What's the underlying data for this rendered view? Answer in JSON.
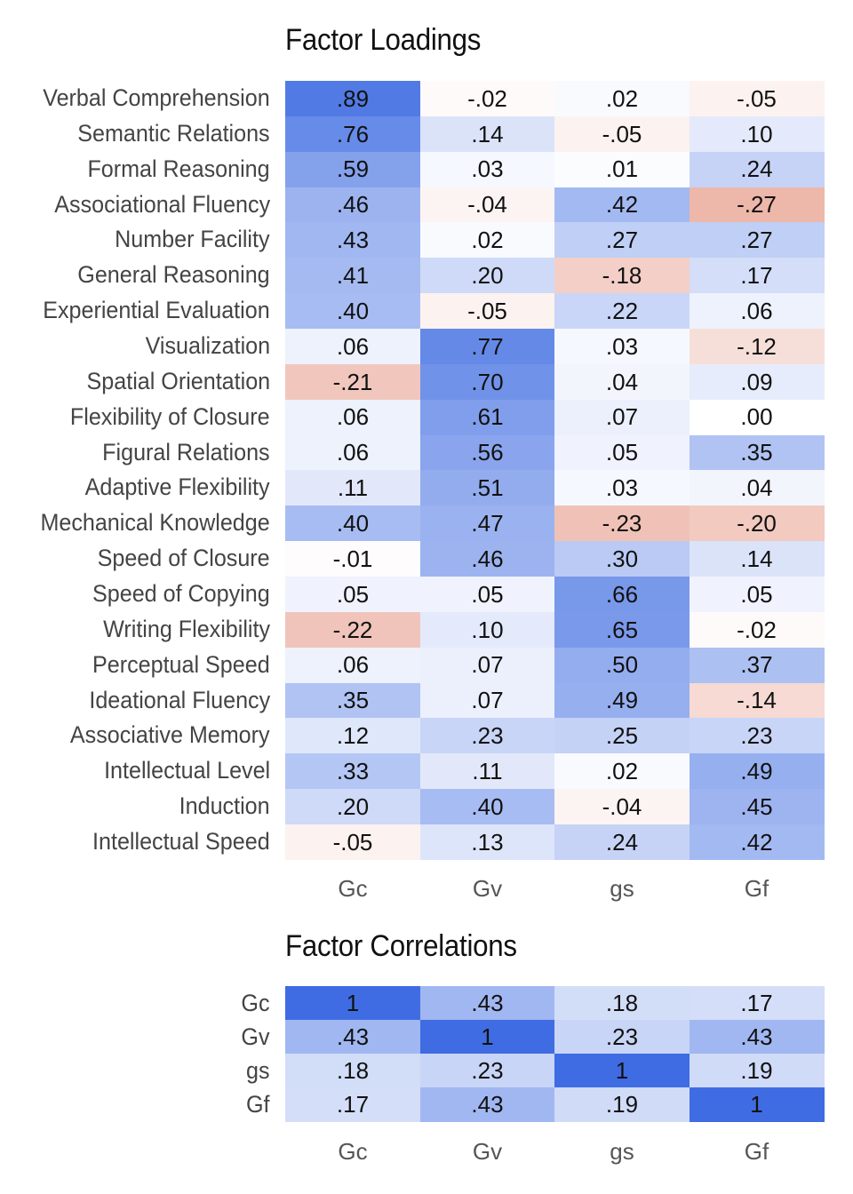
{
  "charts": [
    {
      "title": "Factor Loadings",
      "type": "heatmap",
      "rows": [
        "Verbal Comprehension",
        "Semantic Relations",
        "Formal Reasoning",
        "Associational Fluency",
        "Number Facility",
        "General Reasoning",
        "Experiential Evaluation",
        "Visualization",
        "Spatial Orientation",
        "Flexibility of Closure",
        "Figural Relations",
        "Adaptive Flexibility",
        "Mechanical Knowledge",
        "Speed of Closure",
        "Speed of Copying",
        "Writing Flexibility",
        "Perceptual Speed",
        "Ideational Fluency",
        "Associative Memory",
        "Intellectual Level",
        "Induction",
        "Intellectual Speed"
      ],
      "columns": [
        "Gc",
        "Gv",
        "gs",
        "Gf"
      ],
      "values": [
        [
          0.89,
          -0.02,
          0.02,
          -0.05
        ],
        [
          0.76,
          0.14,
          -0.05,
          0.1
        ],
        [
          0.59,
          0.03,
          0.01,
          0.24
        ],
        [
          0.46,
          -0.04,
          0.42,
          -0.27
        ],
        [
          0.43,
          0.02,
          0.27,
          0.27
        ],
        [
          0.41,
          0.2,
          -0.18,
          0.17
        ],
        [
          0.4,
          -0.05,
          0.22,
          0.06
        ],
        [
          0.06,
          0.77,
          0.03,
          -0.12
        ],
        [
          -0.21,
          0.7,
          0.04,
          0.09
        ],
        [
          0.06,
          0.61,
          0.07,
          0.0
        ],
        [
          0.06,
          0.56,
          0.05,
          0.35
        ],
        [
          0.11,
          0.51,
          0.03,
          0.04
        ],
        [
          0.4,
          0.47,
          -0.23,
          -0.2
        ],
        [
          -0.01,
          0.46,
          0.3,
          0.14
        ],
        [
          0.05,
          0.05,
          0.66,
          0.05
        ],
        [
          -0.22,
          0.1,
          0.65,
          -0.02
        ],
        [
          0.06,
          0.07,
          0.5,
          0.37
        ],
        [
          0.35,
          0.07,
          0.49,
          -0.14
        ],
        [
          0.12,
          0.23,
          0.25,
          0.23
        ],
        [
          0.33,
          0.11,
          0.02,
          0.49
        ],
        [
          0.2,
          0.4,
          -0.04,
          0.45
        ],
        [
          -0.05,
          0.13,
          0.24,
          0.42
        ]
      ],
      "labels": [
        [
          ".89",
          "-.02",
          ".02",
          "-.05"
        ],
        [
          ".76",
          ".14",
          "-.05",
          ".10"
        ],
        [
          ".59",
          ".03",
          ".01",
          ".24"
        ],
        [
          ".46",
          "-.04",
          ".42",
          "-.27"
        ],
        [
          ".43",
          ".02",
          ".27",
          ".27"
        ],
        [
          ".41",
          ".20",
          "-.18",
          ".17"
        ],
        [
          ".40",
          "-.05",
          ".22",
          ".06"
        ],
        [
          ".06",
          ".77",
          ".03",
          "-.12"
        ],
        [
          "-.21",
          ".70",
          ".04",
          ".09"
        ],
        [
          ".06",
          ".61",
          ".07",
          ".00"
        ],
        [
          ".06",
          ".56",
          ".05",
          ".35"
        ],
        [
          ".11",
          ".51",
          ".03",
          ".04"
        ],
        [
          ".40",
          ".47",
          "-.23",
          "-.20"
        ],
        [
          "-.01",
          ".46",
          ".30",
          ".14"
        ],
        [
          ".05",
          ".05",
          ".66",
          ".05"
        ],
        [
          "-.22",
          ".10",
          ".65",
          "-.02"
        ],
        [
          ".06",
          ".07",
          ".50",
          ".37"
        ],
        [
          ".35",
          ".07",
          ".49",
          "-.14"
        ],
        [
          ".12",
          ".23",
          ".25",
          ".23"
        ],
        [
          ".33",
          ".11",
          ".02",
          ".49"
        ],
        [
          ".20",
          ".40",
          "-.04",
          ".45"
        ],
        [
          "-.05",
          ".13",
          ".24",
          ".42"
        ]
      ]
    },
    {
      "title": "Factor Correlations",
      "type": "heatmap",
      "rows": [
        "Gc",
        "Gv",
        "gs",
        "Gf"
      ],
      "columns": [
        "Gc",
        "Gv",
        "gs",
        "Gf"
      ],
      "values": [
        [
          1,
          0.43,
          0.18,
          0.17
        ],
        [
          0.43,
          1,
          0.23,
          0.43
        ],
        [
          0.18,
          0.23,
          1,
          0.19
        ],
        [
          0.17,
          0.43,
          0.19,
          1
        ]
      ],
      "labels": [
        [
          "1",
          ".43",
          ".18",
          ".17"
        ],
        [
          ".43",
          "1",
          ".23",
          ".43"
        ],
        [
          ".18",
          ".23",
          "1",
          ".19"
        ],
        [
          ".17",
          ".43",
          ".19",
          "1"
        ]
      ]
    }
  ],
  "colors": {
    "positive": "#4169e1",
    "negative": "#e8a393",
    "zero": "#ffffff"
  }
}
